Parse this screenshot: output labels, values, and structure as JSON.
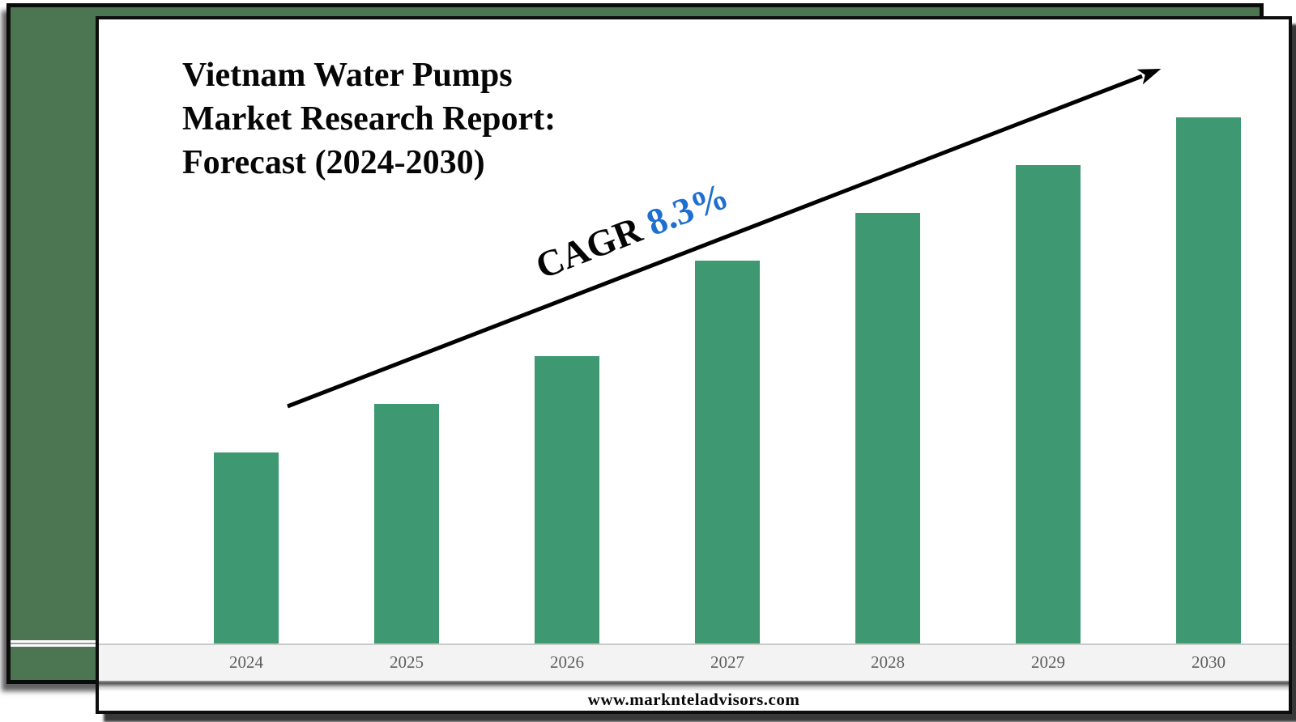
{
  "frame": {
    "panel_color": "#4C7551",
    "border_color": "#0B0B0B"
  },
  "card": {
    "background": "#FFFFFF",
    "border_color": "#0D0D0D"
  },
  "title": {
    "lines": [
      "Vietnam Water Pumps",
      "Market Research Report:",
      "Forecast (2024-2030)"
    ]
  },
  "trend": {
    "cagr_label": "CAGR",
    "cagr_value": "8.3%",
    "value_color": "#1E6FD0",
    "arrow_color": "#000000"
  },
  "footer": {
    "url": "www.marknteladvisors.com"
  },
  "chart_data": {
    "type": "bar",
    "title": "Vietnam Water Pumps Market Research Report: Forecast (2024-2030)",
    "categories": [
      "2024",
      "2025",
      "2026",
      "2027",
      "2028",
      "2029",
      "2030"
    ],
    "values": [
      4,
      5,
      6,
      8,
      9,
      10,
      11
    ],
    "value_scale": "relative units estimated from bar heights; no y-axis shown",
    "bar_color": "#3E9973",
    "tick_label_color": "#5E5E5E",
    "xlabel": "",
    "ylabel": "",
    "ylim": [
      0,
      12
    ],
    "grid": false,
    "legend": "none",
    "annotations": [
      "CAGR 8.3% along upward trend arrow"
    ]
  }
}
